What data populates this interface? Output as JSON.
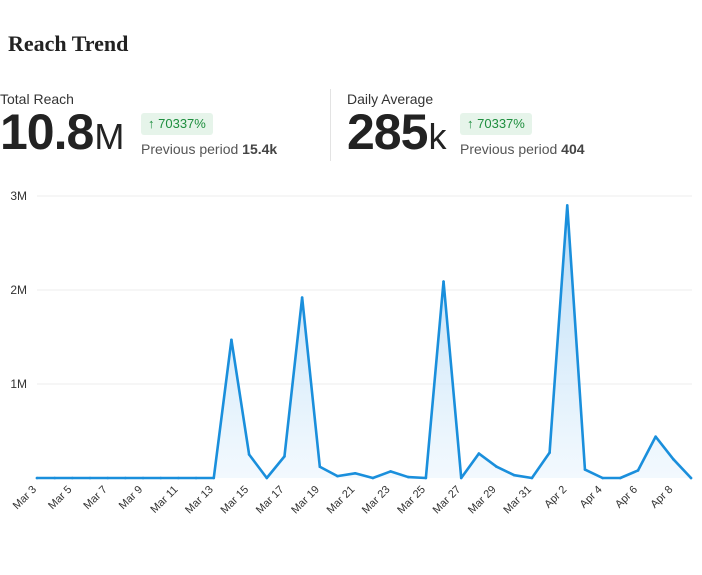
{
  "title": "Reach Trend",
  "metrics": {
    "total": {
      "label": "Total Reach",
      "value": "10.8",
      "unit": "M",
      "change": "70337%",
      "previous_label": "Previous period",
      "previous_value": "15.4k"
    },
    "average": {
      "label": "Daily Average",
      "value": "285",
      "unit": "k",
      "change": "70337%",
      "previous_label": "Previous period",
      "previous_value": "404"
    }
  },
  "colors": {
    "line": "#1a8fdc",
    "fill_top": "#a9d4f5",
    "fill_bottom": "#eaf5fd",
    "badge_text": "#1e8e3e",
    "badge_bg": "#e6f4ea"
  },
  "chart_data": {
    "type": "area",
    "title": "",
    "xlabel": "",
    "ylabel": "",
    "ylim": [
      0,
      3000000
    ],
    "yticks": [
      {
        "value": 1000000,
        "label": "1M"
      },
      {
        "value": 2000000,
        "label": "2M"
      },
      {
        "value": 3000000,
        "label": "3M"
      }
    ],
    "grid": true,
    "x": [
      "Mar 3",
      "Mar 4",
      "Mar 5",
      "Mar 6",
      "Mar 7",
      "Mar 8",
      "Mar 9",
      "Mar 10",
      "Mar 11",
      "Mar 12",
      "Mar 13",
      "Mar 14",
      "Mar 15",
      "Mar 16",
      "Mar 17",
      "Mar 18",
      "Mar 19",
      "Mar 20",
      "Mar 21",
      "Mar 22",
      "Mar 23",
      "Mar 24",
      "Mar 25",
      "Mar 26",
      "Mar 27",
      "Mar 28",
      "Mar 29",
      "Mar 30",
      "Mar 31",
      "Apr 1",
      "Apr 2",
      "Apr 3",
      "Apr 4",
      "Apr 5",
      "Apr 6",
      "Apr 7",
      "Apr 8",
      "Apr 9"
    ],
    "xtick_labels": [
      "Mar 3",
      "Mar 5",
      "Mar 7",
      "Mar 9",
      "Mar 11",
      "Mar 13",
      "Mar 15",
      "Mar 17",
      "Mar 19",
      "Mar 21",
      "Mar 23",
      "Mar 25",
      "Mar 27",
      "Mar 29",
      "Mar 31",
      "Apr 2",
      "Apr 4",
      "Apr 6",
      "Apr 8"
    ],
    "values": [
      0,
      0,
      0,
      0,
      0,
      0,
      0,
      0,
      0,
      0,
      0,
      1470000,
      250000,
      0,
      230000,
      1920000,
      120000,
      20000,
      50000,
      0,
      70000,
      10000,
      0,
      2090000,
      0,
      260000,
      120000,
      30000,
      0,
      270000,
      2900000,
      90000,
      0,
      0,
      80000,
      440000,
      200000,
      0
    ]
  }
}
